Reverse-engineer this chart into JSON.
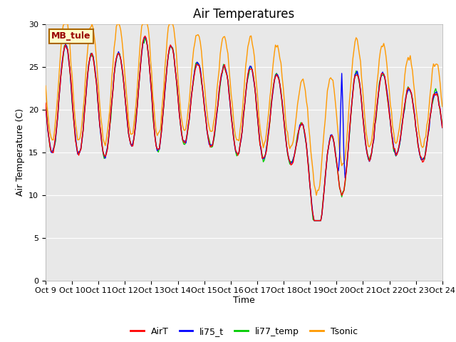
{
  "title": "Air Temperatures",
  "ylabel": "Air Temperature (C)",
  "xlabel": "Time",
  "site_label": "MB_tule",
  "ylim": [
    0,
    30
  ],
  "yticks": [
    0,
    5,
    10,
    15,
    20,
    25,
    30
  ],
  "xtick_labels": [
    "Oct 9",
    "Oct 10",
    "Oct 11",
    "Oct 12",
    "Oct 13",
    "Oct 14",
    "Oct 15",
    "Oct 16",
    "Oct 17",
    "Oct 18",
    "Oct 19",
    "Oct 20",
    "Oct 21",
    "Oct 22",
    "Oct 23",
    "Oct 24"
  ],
  "colors": {
    "AirT": "#ff0000",
    "li75_t": "#0000ff",
    "li77_temp": "#00cc00",
    "Tsonic": "#ff9900"
  },
  "line_width": 1.0,
  "title_fontsize": 12,
  "label_fontsize": 9,
  "tick_fontsize": 8
}
